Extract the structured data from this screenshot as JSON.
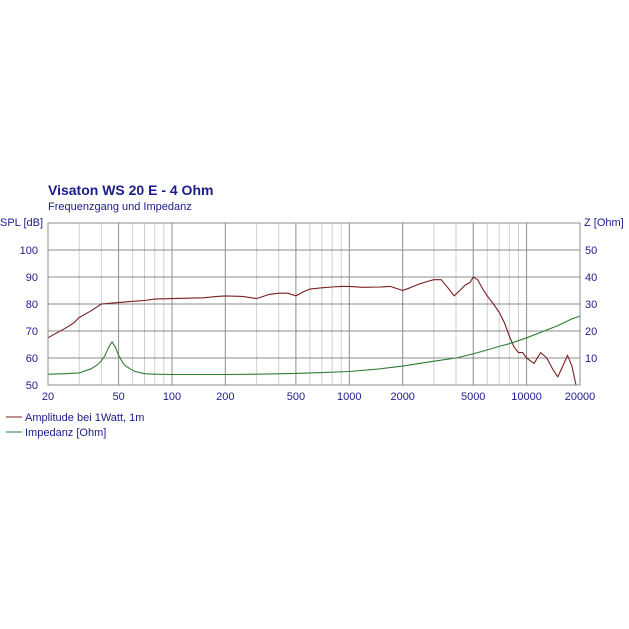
{
  "colors": {
    "spl": "#7a1e1e",
    "impedance": "#2e7d32",
    "text": "#1b1b8a",
    "grid_major": "#8c8c8c",
    "grid_minor": "#cfcfcf",
    "background": "#ffffff"
  },
  "chart_data": {
    "type": "line",
    "title": "Visaton WS 20 E - 4 Ohm",
    "subtitle": "Frequenzgang und Impedanz",
    "ylabel_left": "SPL [dB]",
    "ylabel_right": "Z [Ohm]",
    "x_scale": "log",
    "xlim": [
      20,
      20000
    ],
    "ylim_left": [
      50,
      110
    ],
    "ylim_right": [
      0,
      60
    ],
    "grid": true,
    "legend_placement": "bottom-left",
    "x_ticks": [
      {
        "value": 20,
        "label": "20"
      },
      {
        "value": 50,
        "label": "50"
      },
      {
        "value": 100,
        "label": "100"
      },
      {
        "value": 200,
        "label": "200"
      },
      {
        "value": 500,
        "label": "500"
      },
      {
        "value": 1000,
        "label": "1000"
      },
      {
        "value": 2000,
        "label": "2000"
      },
      {
        "value": 5000,
        "label": "5000"
      },
      {
        "value": 10000,
        "label": "10000"
      },
      {
        "value": 20000,
        "label": "20000"
      }
    ],
    "y_ticks_left": [
      {
        "value": 100,
        "label": "100"
      },
      {
        "value": 90,
        "label": "90"
      },
      {
        "value": 80,
        "label": "80"
      },
      {
        "value": 70,
        "label": "70"
      },
      {
        "value": 60,
        "label": "60"
      },
      {
        "value": 50,
        "label": "50"
      }
    ],
    "y_ticks_right": [
      {
        "value": 50,
        "label": "50"
      },
      {
        "value": 40,
        "label": "40"
      },
      {
        "value": 30,
        "label": "30"
      },
      {
        "value": 20,
        "label": "20"
      },
      {
        "value": 10,
        "label": "10"
      }
    ],
    "series": [
      {
        "name": "Amplitude bei 1Watt, 1m",
        "axis": "left",
        "color_key": "spl",
        "points": [
          [
            20,
            67.5
          ],
          [
            22,
            69
          ],
          [
            25,
            71
          ],
          [
            28,
            73
          ],
          [
            30,
            75
          ],
          [
            35,
            77.5
          ],
          [
            40,
            80
          ],
          [
            45,
            80.3
          ],
          [
            50,
            80.5
          ],
          [
            60,
            81
          ],
          [
            70,
            81.3
          ],
          [
            80,
            81.8
          ],
          [
            100,
            82
          ],
          [
            130,
            82.2
          ],
          [
            150,
            82.3
          ],
          [
            180,
            82.8
          ],
          [
            200,
            83
          ],
          [
            250,
            82.8
          ],
          [
            300,
            82
          ],
          [
            350,
            83.5
          ],
          [
            400,
            84
          ],
          [
            450,
            84
          ],
          [
            500,
            83
          ],
          [
            550,
            84.5
          ],
          [
            600,
            85.5
          ],
          [
            700,
            86
          ],
          [
            800,
            86.3
          ],
          [
            900,
            86.5
          ],
          [
            1000,
            86.5
          ],
          [
            1200,
            86.2
          ],
          [
            1500,
            86.3
          ],
          [
            1700,
            86.5
          ],
          [
            2000,
            85
          ],
          [
            2200,
            86
          ],
          [
            2500,
            87.5
          ],
          [
            2800,
            88.5
          ],
          [
            3000,
            89
          ],
          [
            3300,
            89
          ],
          [
            3600,
            86
          ],
          [
            3900,
            83
          ],
          [
            4200,
            85
          ],
          [
            4500,
            87
          ],
          [
            4800,
            88
          ],
          [
            5000,
            90
          ],
          [
            5300,
            89
          ],
          [
            5600,
            86
          ],
          [
            6000,
            83
          ],
          [
            6500,
            80
          ],
          [
            7000,
            77
          ],
          [
            7500,
            73
          ],
          [
            8000,
            68
          ],
          [
            8500,
            64
          ],
          [
            9000,
            62
          ],
          [
            9500,
            62
          ],
          [
            10000,
            60
          ],
          [
            11000,
            58
          ],
          [
            12000,
            62
          ],
          [
            13000,
            60
          ],
          [
            14000,
            56
          ],
          [
            15000,
            53
          ],
          [
            16000,
            57
          ],
          [
            17000,
            61
          ],
          [
            18000,
            57
          ],
          [
            19000,
            50
          ],
          [
            20000,
            49
          ]
        ]
      },
      {
        "name": "Impedanz [Ohm]",
        "axis": "right",
        "color_key": "impedance",
        "points": [
          [
            20,
            4
          ],
          [
            25,
            4.2
          ],
          [
            30,
            4.5
          ],
          [
            35,
            6
          ],
          [
            38,
            7.5
          ],
          [
            40,
            9
          ],
          [
            42,
            11
          ],
          [
            44,
            14
          ],
          [
            46,
            16
          ],
          [
            48,
            14
          ],
          [
            50,
            11
          ],
          [
            53,
            8
          ],
          [
            55,
            7
          ],
          [
            58,
            6
          ],
          [
            62,
            5
          ],
          [
            70,
            4.2
          ],
          [
            80,
            4
          ],
          [
            100,
            3.9
          ],
          [
            150,
            3.9
          ],
          [
            200,
            3.9
          ],
          [
            300,
            4
          ],
          [
            500,
            4.3
          ],
          [
            700,
            4.6
          ],
          [
            1000,
            5
          ],
          [
            1500,
            6
          ],
          [
            2000,
            7
          ],
          [
            3000,
            8.8
          ],
          [
            4000,
            10
          ],
          [
            5000,
            11.5
          ],
          [
            6000,
            13
          ],
          [
            7000,
            14.3
          ],
          [
            8000,
            15.3
          ],
          [
            10000,
            17.5
          ],
          [
            12000,
            19.5
          ],
          [
            15000,
            22
          ],
          [
            18000,
            24.5
          ],
          [
            20000,
            25.5
          ]
        ]
      }
    ]
  }
}
